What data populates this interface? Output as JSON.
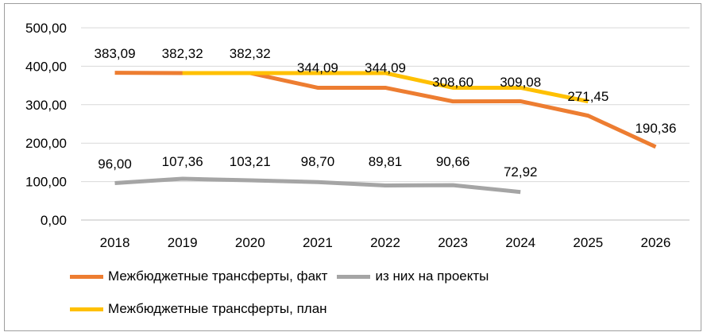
{
  "chart_data": {
    "type": "line",
    "categories": [
      "2018",
      "2019",
      "2020",
      "2021",
      "2022",
      "2023",
      "2024",
      "2025",
      "2026"
    ],
    "ylim": [
      0,
      500
    ],
    "yticks": [
      "0,00",
      "100,00",
      "200,00",
      "300,00",
      "400,00",
      "500,00"
    ],
    "ytick_values": [
      0,
      100,
      200,
      300,
      400,
      500
    ],
    "grid": true,
    "legend_position": "bottom",
    "series": [
      {
        "name": "Межбюджетные трансферты, факт",
        "color": "#ed7d31",
        "values": [
          383.09,
          382.32,
          382.32,
          344.09,
          344.09,
          308.6,
          309.08,
          271.45,
          190.36
        ],
        "labels": [
          "383,09",
          "382,32",
          "382,32",
          "344,09",
          "344,09",
          "308,60",
          "309,08",
          "271,45",
          "190,36"
        ]
      },
      {
        "name": "из них на проекты",
        "color": "#a5a5a5",
        "values": [
          96.0,
          107.36,
          103.21,
          98.7,
          89.81,
          90.66,
          72.92,
          null,
          null
        ],
        "labels": [
          "96,00",
          "107,36",
          "103,21",
          "98,70",
          "89,81",
          "90,66",
          "72,92",
          null,
          null
        ]
      },
      {
        "name": "Межбюджетные трансферты, план",
        "color": "#ffc000",
        "values": [
          null,
          382.32,
          382.32,
          382.32,
          382.32,
          344.09,
          344.09,
          308.6,
          null
        ],
        "labels": null
      }
    ]
  },
  "legend": {
    "fact": "Межбюджетные трансферты, факт",
    "projects": "из них на проекты",
    "plan": "Межбюджетные трансферты, план"
  }
}
